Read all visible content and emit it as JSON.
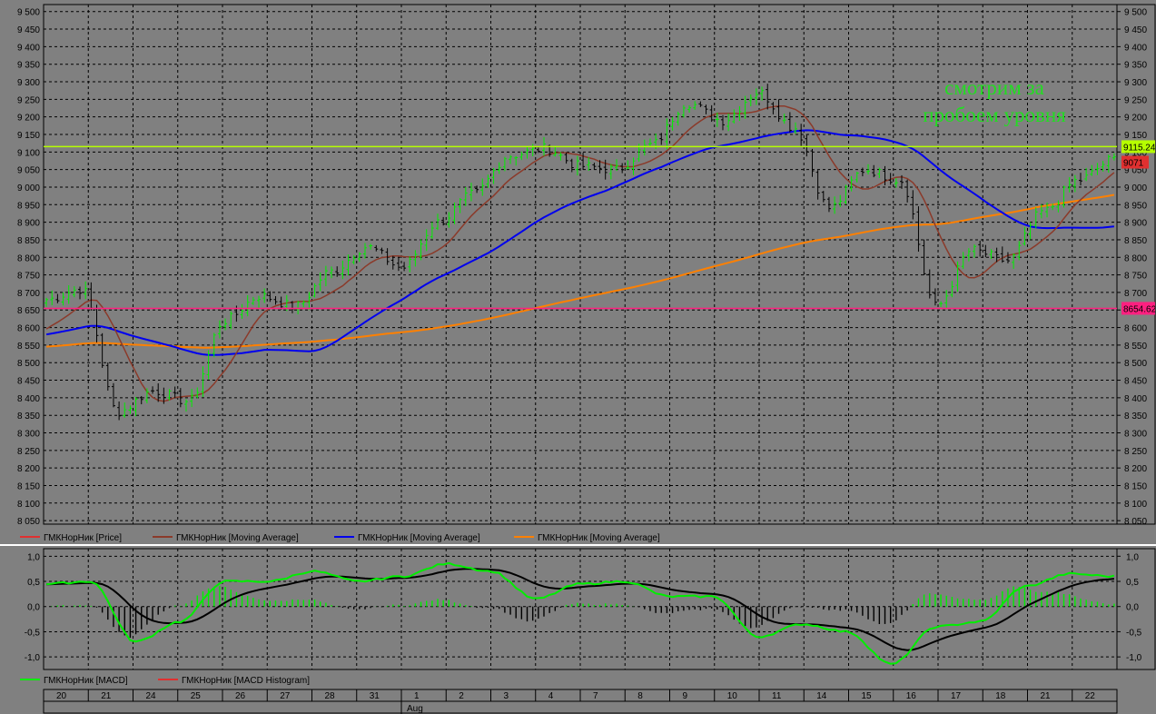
{
  "chart_data": [
    {
      "type": "line",
      "panel": "price",
      "ylim": [
        8040,
        9520
      ],
      "y_ticks": [
        8050,
        8100,
        8150,
        8200,
        8250,
        8300,
        8350,
        8400,
        8450,
        8500,
        8550,
        8600,
        8650,
        8700,
        8750,
        8800,
        8850,
        8900,
        8950,
        9000,
        9050,
        9100,
        9150,
        9200,
        9250,
        9300,
        9350,
        9400,
        9450,
        9500
      ],
      "y_tick_labels": [
        "8 050",
        "8 100",
        "8 150",
        "8 200",
        "8 250",
        "8 300",
        "8 350",
        "8 400",
        "8 450",
        "8 500",
        "8 550",
        "8 600",
        "8 650",
        "8 700",
        "8 750",
        "8 800",
        "8 850",
        "8 900",
        "8 950",
        "9 000",
        "9 050",
        "9 100",
        "9 150",
        "9 200",
        "9 250",
        "9 300",
        "9 350",
        "9 400",
        "9 450",
        "9 500"
      ],
      "grid": true,
      "x_categories": [
        "20",
        "21",
        "24",
        "25",
        "26",
        "27",
        "28",
        "31",
        "1",
        "2",
        "3",
        "4",
        "7",
        "8",
        "9",
        "10",
        "11",
        "14",
        "15",
        "16",
        "17",
        "18",
        "21",
        "22"
      ],
      "x_month_label": {
        "at": "1",
        "text": "Aug"
      },
      "bars_per_day": 8,
      "close_knots": [
        8680,
        8710,
        8360,
        8420,
        8390,
        8620,
        8690,
        8660,
        8760,
        8830,
        8770,
        8900,
        8980,
        9090,
        9110,
        9060,
        9050,
        9120,
        9240,
        9190,
        9270,
        9170,
        8940,
        9050,
        9020,
        8660,
        8820,
        8790,
        8930,
        9020,
        9080
      ],
      "colors": {
        "up": "#00ee00",
        "down": "#000000",
        "ma_short": "#8b3a2a",
        "ma_mid": "#0000ee",
        "ma_long": "#ff8000",
        "resistance": "#b6ff00",
        "support": "#ff2080"
      },
      "ma_periods": {
        "short": 10,
        "mid": 40,
        "long": 150
      },
      "series": [
        {
          "name": "ГМКНорНик [Price]",
          "legend_color": "#e03030"
        },
        {
          "name": "ГМКНорНик [Moving Average]",
          "legend_color": "#8b3a2a"
        },
        {
          "name": "ГМКНорНик [Moving Average]",
          "legend_color": "#0000ee"
        },
        {
          "name": "ГМКНорНик [Moving Average]",
          "legend_color": "#ff8000"
        }
      ],
      "horizontal_lines": [
        {
          "value": 9115.24,
          "label": "9115.24",
          "color": "#b6ff00",
          "label_bg": "#b6ff00"
        },
        {
          "value": 8654.62,
          "label": "8654.62",
          "color": "#ff2080",
          "label_bg": "#ff2080"
        }
      ],
      "last_price": {
        "value": 9071,
        "label": "9071",
        "label_bg": "#e03030"
      },
      "annotations": [
        "смотрим за",
        "пробоем уровня"
      ]
    },
    {
      "type": "line",
      "panel": "macd",
      "ylim": [
        -1.25,
        1.15
      ],
      "y_ticks": [
        1.0,
        0.5,
        0.0,
        -0.5,
        -1.0
      ],
      "y_tick_labels": [
        "1,0",
        "0,5",
        "0,0",
        "-0,5",
        "-1,0"
      ],
      "grid": true,
      "macd_knots": [
        0.45,
        0.5,
        -0.7,
        -0.3,
        0.5,
        0.5,
        0.7,
        0.5,
        0.6,
        0.85,
        0.7,
        0.15,
        0.45,
        0.5,
        0.2,
        0.2,
        -0.6,
        -0.35,
        -0.5,
        -1.15,
        -0.4,
        -0.3,
        0.4,
        0.65,
        0.6
      ],
      "colors": {
        "macd": "#00ee00",
        "signal": "#000000",
        "histogram": "#000000",
        "histogram_alt": "#00ee00"
      },
      "series": [
        {
          "name": "ГМКНорНик [MACD]",
          "legend_color": "#00ee00"
        },
        {
          "name": "ГМКНорНик [MACD Histogram]",
          "legend_color": "#e03030"
        }
      ]
    }
  ]
}
